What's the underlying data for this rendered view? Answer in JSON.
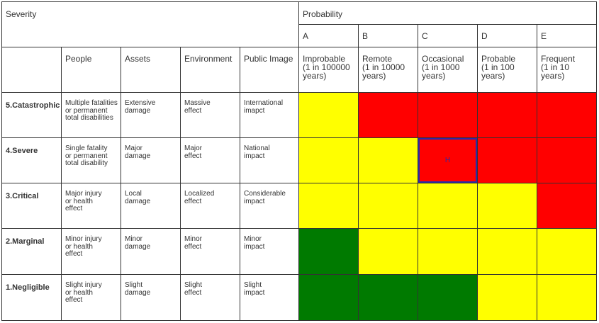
{
  "header": {
    "severity": "Severity",
    "probability": "Probability",
    "letters": [
      "A",
      "B",
      "C",
      "D",
      "E"
    ],
    "categories": [
      "People",
      "Assets",
      "Environment",
      "Public Image"
    ],
    "probability_names": [
      "Improbable\n(1 in 100000\nyears)",
      "Remote\n(1 in 10000\nyears)",
      "Occasional\n(1 in 1000\nyears)",
      "Probable\n(1 in 100\nyears)",
      "Frequent\n(1 in 10\nyears)"
    ]
  },
  "rows": [
    {
      "severity": "5.Catastrophic",
      "people": "Multiple fatalities\nor permanent\ntotal disabilities",
      "assets": "Extensive\ndamage",
      "environment": "Massive\neffect",
      "public_image": "International\nimapct",
      "risk": [
        "yellow",
        "red",
        "red",
        "red",
        "red"
      ]
    },
    {
      "severity": "4.Severe",
      "people": "Single fatality\nor permanent\ntotal disability",
      "assets": "Major\ndamage",
      "environment": "Major\neffect",
      "public_image": "National\nimpact",
      "risk": [
        "yellow",
        "yellow",
        "red",
        "red",
        "red"
      ]
    },
    {
      "severity": "3.Critical",
      "people": "Major injury\nor health\neffect",
      "assets": "Local\ndamage",
      "environment": "Localized\neffect",
      "public_image": "Considerable\nimpact",
      "risk": [
        "yellow",
        "yellow",
        "yellow",
        "yellow",
        "red"
      ]
    },
    {
      "severity": "2.Marginal",
      "people": "Minor injury\nor health\neffect",
      "assets": "Minor\ndamage",
      "environment": "Minor\neffect",
      "public_image": "Minor\nimpact",
      "risk": [
        "green",
        "yellow",
        "yellow",
        "yellow",
        "yellow"
      ]
    },
    {
      "severity": "1.Negligible",
      "people": "Slight injury\nor health\neffect",
      "assets": "Slight\ndamage",
      "environment": "Slight\neffect",
      "public_image": "Slight\nimpact",
      "risk": [
        "green",
        "green",
        "green",
        "yellow",
        "yellow"
      ]
    }
  ],
  "highlight": {
    "row": 1,
    "col": 2,
    "label": "H",
    "border_color": "#2a2aa8",
    "text_color": "#2a2aa8"
  },
  "colors": {
    "red": "#ff0000",
    "yellow": "#ffff00",
    "green": "#007a00"
  }
}
